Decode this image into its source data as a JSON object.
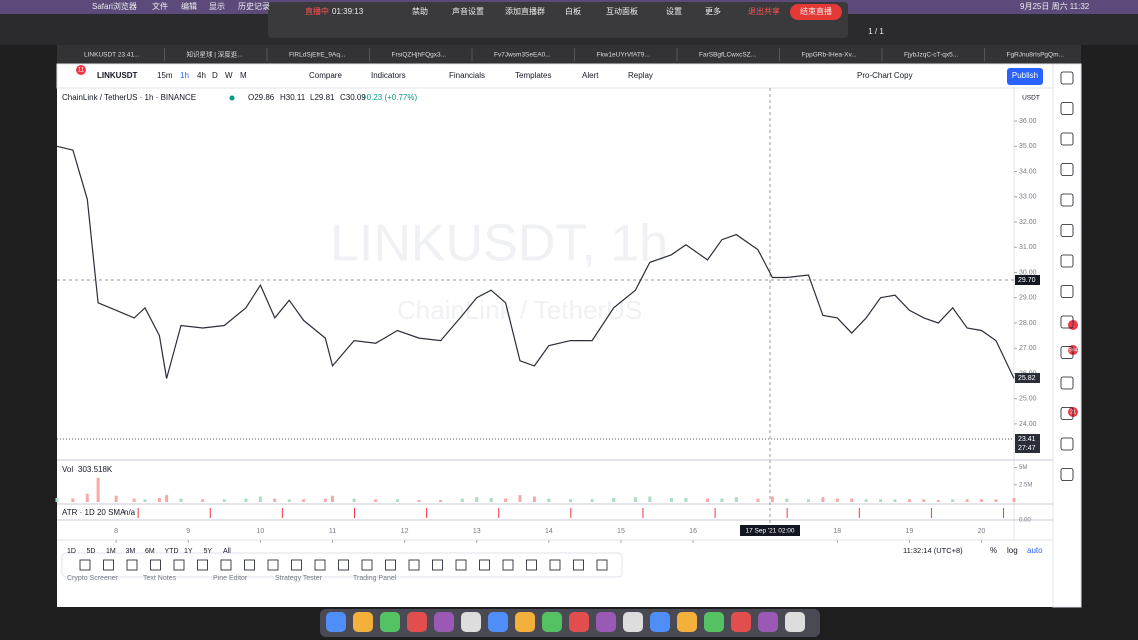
{
  "menubar": {
    "items": [
      "Safari浏览器",
      "文件",
      "编辑",
      "显示",
      "历史记录"
    ],
    "clock": "9月25日 周六 11:32"
  },
  "meeting": {
    "status": "直播中",
    "timer": "01:39:13",
    "tools": [
      "禁助",
      "声音设置",
      "添加直播群",
      "白板",
      "互动面板",
      "设置",
      "更多"
    ],
    "stop_share": "退出共享",
    "end_live": "结束直播",
    "page": "1 / 1"
  },
  "tabs": [
    "LINKUSDT 23.41...",
    "知识星球 | 深度逛...",
    "FlRLdSjEfrE_9Aq...",
    "FrsiQZHjhFQgx3...",
    "Fv7Jwsm3SeEA0...",
    "Fkw1eUYrVfAT9...",
    "FarSBgfLCwxcSZ...",
    "FppGRb-IHea-Xv...",
    "FjybJzqC-cT-qx5...",
    "FgRJnu8rIsPgQm..."
  ],
  "toolbar": {
    "badge": "11",
    "symbol": "LINKUSDT",
    "intervals": [
      "15m",
      "1h",
      "4h",
      "D",
      "W",
      "M"
    ],
    "buttons": [
      "Compare",
      "Indicators",
      "Financials",
      "Templates",
      "Alert",
      "Replay"
    ],
    "layout": "Pro-Chart Copy",
    "publish": "Publish"
  },
  "legend": {
    "name": "ChainLink / TetherUS · 1h · BINANCE",
    "ohlc": [
      "O29.86",
      "H30.11",
      "L29.81",
      "C30.09",
      "+0.23 (+0.77%)"
    ]
  },
  "watermark": {
    "symbol": "LINKUSDT, 1h",
    "name": "ChainLink / TetherUS"
  },
  "price_labels": {
    "currency": "USDT",
    "crosshair": "29.70",
    "last": "25.82",
    "low": "23.41",
    "countdown": "27:47"
  },
  "volume_pane": {
    "label": "Vol",
    "value": "303.518K"
  },
  "atr_pane": {
    "label": "ATR · 1D 20 SMA",
    "value": "n/a",
    "axis": "0.00"
  },
  "crosshair_time": "17 Sep '21  02:00",
  "ranges": [
    "1D",
    "5D",
    "1M",
    "3M",
    "6M",
    "YTD",
    "1Y",
    "5Y",
    "All"
  ],
  "status": {
    "time": "11:32:14 (UTC+8)",
    "percent": "%",
    "log": "log",
    "auto": "auto"
  },
  "bottom_tabs": [
    "Crypto Screener",
    "Text Notes",
    "Pine Editor",
    "Strategy Tester",
    "Trading Panel"
  ],
  "sidebar_badges": [
    "1",
    "594",
    "21"
  ],
  "chart_data": {
    "type": "line",
    "color": "#2a2e39",
    "xlim": [
      7.18,
      20.45
    ],
    "xticks": [
      8,
      9,
      10,
      11,
      12,
      13,
      14,
      15,
      16,
      18,
      19,
      20
    ],
    "ylim": [
      22.57,
      37.31
    ],
    "yticks": [
      {
        "value": 24,
        "label": "24.00"
      },
      {
        "value": 25,
        "label": "25.00"
      },
      {
        "value": 26,
        "label": "26.00"
      },
      {
        "value": 27,
        "label": "27.00"
      },
      {
        "value": 28,
        "label": "28.00"
      },
      {
        "value": 29,
        "label": "29.00"
      },
      {
        "value": 30,
        "label": "30.00"
      },
      {
        "value": 31,
        "label": "31.00"
      },
      {
        "value": 32,
        "label": "32.00"
      },
      {
        "value": 33,
        "label": "33.00"
      },
      {
        "value": 34,
        "label": "34.00"
      },
      {
        "value": 35,
        "label": "35.00"
      },
      {
        "value": 36,
        "label": "36.00"
      }
    ],
    "x": [
      7.18,
      7.4,
      7.6,
      7.75,
      8.0,
      8.25,
      8.4,
      8.6,
      8.7,
      8.9,
      9.2,
      9.5,
      9.8,
      10.0,
      10.2,
      10.4,
      10.6,
      10.9,
      11.0,
      11.3,
      11.6,
      11.9,
      12.2,
      12.5,
      12.8,
      13.0,
      13.2,
      13.4,
      13.6,
      13.8,
      14.0,
      14.3,
      14.6,
      14.9,
      15.2,
      15.4,
      15.7,
      15.9,
      16.2,
      16.4,
      16.6,
      16.9,
      17.1,
      17.3,
      17.6,
      17.8,
      18.0,
      18.2,
      18.4,
      18.6,
      18.8,
      19.0,
      19.2,
      19.4,
      19.6,
      19.8,
      20.0,
      20.2,
      20.45
    ],
    "closes": [
      35.0,
      34.85,
      32.9,
      28.8,
      28.5,
      28.2,
      28.6,
      27.5,
      25.8,
      27.9,
      27.8,
      27.9,
      28.6,
      29.5,
      28.2,
      28.9,
      28.1,
      27.4,
      26.3,
      27.3,
      27.2,
      27.7,
      27.4,
      27.3,
      28.3,
      29.0,
      29.3,
      28.8,
      26.5,
      26.3,
      27.1,
      27.3,
      27.3,
      28.6,
      29.3,
      30.4,
      30.7,
      31.1,
      30.5,
      31.3,
      31.5,
      30.9,
      29.8,
      29.8,
      29.9,
      28.3,
      28.2,
      27.6,
      28.2,
      29.0,
      29.1,
      28.5,
      28.2,
      28.0,
      28.6,
      27.8,
      27.7,
      27.3,
      25.8
    ],
    "volumes": [
      0.6,
      0.5,
      1.2,
      3.5,
      0.9,
      0.5,
      0.4,
      0.6,
      1.0,
      0.5,
      0.4,
      0.4,
      0.5,
      0.8,
      0.5,
      0.4,
      0.4,
      0.5,
      0.9,
      0.5,
      0.4,
      0.4,
      0.3,
      0.3,
      0.5,
      0.7,
      0.6,
      0.5,
      1.0,
      0.8,
      0.5,
      0.4,
      0.4,
      0.6,
      0.7,
      0.8,
      0.6,
      0.6,
      0.5,
      0.5,
      0.7,
      0.5,
      0.8,
      0.5,
      0.4,
      0.7,
      0.5,
      0.5,
      0.4,
      0.4,
      0.4,
      0.4,
      0.4,
      0.3,
      0.4,
      0.4,
      0.4,
      0.4,
      0.6
    ],
    "vol_ylim": [
      0,
      5.8
    ],
    "vol_yticks": [
      {
        "value": 2.5,
        "label": "2.5M"
      },
      {
        "value": 5,
        "label": "5M"
      }
    ]
  }
}
